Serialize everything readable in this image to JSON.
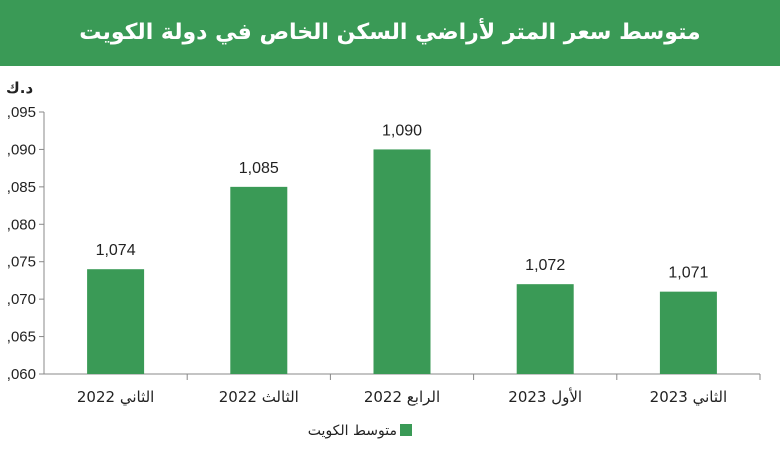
{
  "chart_data": {
    "type": "bar",
    "title": "متوسط سعر المتر  لأراضي السكن الخاص في دولة الكويت",
    "ylabel": "د.ك",
    "categories": [
      "الثاني 2022",
      "الثالث 2022",
      "الرابع 2022",
      "الأول 2023",
      "الثاني 2023"
    ],
    "series": [
      {
        "name": "متوسط الكويت",
        "values": [
          1074,
          1085,
          1090,
          1072,
          1071
        ],
        "color": "#3a9a56"
      }
    ],
    "data_labels": [
      "1,074",
      "1,085",
      "1,090",
      "1,072",
      "1,071"
    ],
    "yticks": [
      1060,
      1065,
      1070,
      1075,
      1080,
      1085,
      1090,
      1095
    ],
    "ytick_labels": [
      ",060",
      ",065",
      ",070",
      ",075",
      ",080",
      ",085",
      ",090",
      ",095"
    ],
    "ylim": [
      1060,
      1095
    ],
    "grid": false,
    "legend_position": "bottom"
  }
}
